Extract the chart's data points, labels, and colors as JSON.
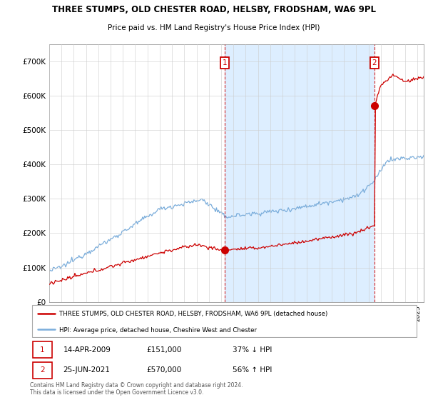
{
  "title": "THREE STUMPS, OLD CHESTER ROAD, HELSBY, FRODSHAM, WA6 9PL",
  "subtitle": "Price paid vs. HM Land Registry's House Price Index (HPI)",
  "legend_line1": "THREE STUMPS, OLD CHESTER ROAD, HELSBY, FRODSHAM, WA6 9PL (detached house)",
  "legend_line2": "HPI: Average price, detached house, Cheshire West and Chester",
  "annotation1_date": "14-APR-2009",
  "annotation1_price": "£151,000",
  "annotation1_hpi": "37% ↓ HPI",
  "annotation2_date": "25-JUN-2021",
  "annotation2_price": "£570,000",
  "annotation2_hpi": "56% ↑ HPI",
  "footnote": "Contains HM Land Registry data © Crown copyright and database right 2024.\nThis data is licensed under the Open Government Licence v3.0.",
  "red_color": "#cc0000",
  "blue_color": "#7aaddb",
  "shade_color": "#ddeeff",
  "ylim": [
    0,
    750000
  ],
  "yticks": [
    0,
    100000,
    200000,
    300000,
    400000,
    500000,
    600000,
    700000
  ],
  "ytick_labels": [
    "£0",
    "£100K",
    "£200K",
    "£300K",
    "£400K",
    "£500K",
    "£600K",
    "£700K"
  ],
  "sale1_year": 2009.28,
  "sale1_price": 151000,
  "sale2_year": 2021.48,
  "sale2_price": 570000,
  "xlim_start": 1995,
  "xlim_end": 2025.5
}
